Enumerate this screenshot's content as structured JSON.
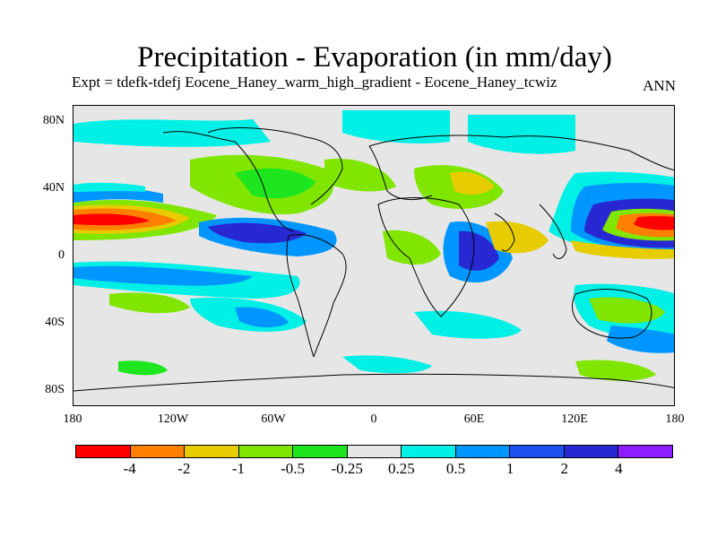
{
  "title": "Precipitation - Evaporation (in mm/day)",
  "subtitle": "Expt = tdefk-tdefj Eocene_Haney_warm_high_gradient - Eocene_Haney_tcwiz",
  "season": "ANN",
  "y_axis_labels": [
    "80N",
    "40N",
    "0",
    "40S",
    "80S"
  ],
  "x_axis_labels": [
    "180",
    "120W",
    "60W",
    "0",
    "60E",
    "120E",
    "180"
  ],
  "colorbar": {
    "colors": [
      "#ff0000",
      "#ff8000",
      "#e6cc00",
      "#80e600",
      "#1ee61e",
      "#e6e6e6",
      "#00f0e6",
      "#0096ff",
      "#1e50f0",
      "#2828d2",
      "#8c1eff"
    ],
    "labels": [
      "-4",
      "-2",
      "-1",
      "-0.5",
      "-0.25",
      "0.25",
      "0.5",
      "1",
      "2",
      "4"
    ]
  },
  "map_colors": {
    "background": "#e6e6e6",
    "coast": "#000000"
  }
}
